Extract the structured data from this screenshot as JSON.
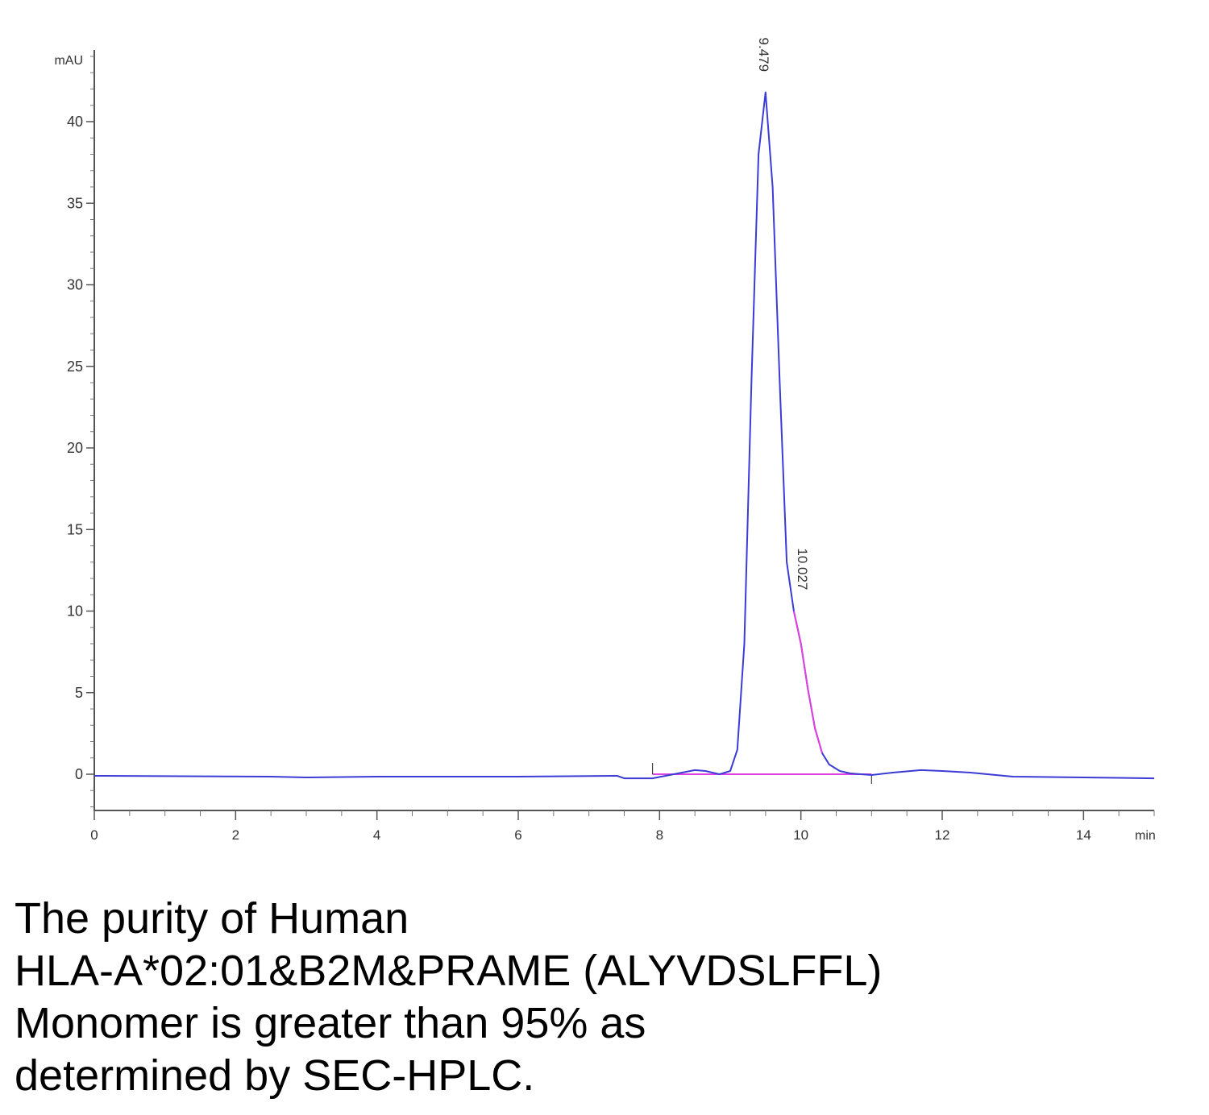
{
  "chart_data": {
    "type": "line",
    "ylabel": "mAU",
    "xlabel": "min",
    "xlim": [
      0,
      15
    ],
    "ylim": [
      -2.2,
      44
    ],
    "x_ticks": [
      0,
      2,
      4,
      6,
      8,
      10,
      12,
      14
    ],
    "y_ticks": [
      0,
      5,
      10,
      15,
      20,
      25,
      30,
      35,
      40
    ],
    "grid": false,
    "series": [
      {
        "color": "#3b3bd6",
        "x": [
          0,
          2.5,
          3.0,
          4.0,
          5.0,
          6.0,
          7.4,
          7.5,
          7.9,
          8.2,
          8.5,
          8.65,
          8.85,
          9.0,
          9.1,
          9.2,
          9.3,
          9.4,
          9.5,
          9.6,
          9.7,
          9.8,
          9.9,
          10.0,
          10.1,
          10.2,
          10.3,
          10.4,
          10.55,
          10.7,
          11.0,
          11.3,
          11.7,
          12.0,
          12.4,
          13.0,
          14.0,
          15.0
        ],
        "y": [
          -0.1,
          -0.15,
          -0.2,
          -0.15,
          -0.15,
          -0.15,
          -0.1,
          -0.25,
          -0.25,
          0.0,
          0.25,
          0.2,
          0.0,
          0.2,
          1.5,
          8.0,
          24.0,
          38.0,
          41.8,
          36.0,
          24.0,
          13.0,
          10.0,
          8.0,
          5.2,
          2.8,
          1.3,
          0.6,
          0.2,
          0.05,
          -0.05,
          0.1,
          0.25,
          0.2,
          0.1,
          -0.15,
          -0.2,
          -0.25
        ]
      }
    ],
    "baseline": {
      "color": "#e040e0",
      "x": [
        7.9,
        11.0
      ],
      "y": [
        0.0,
        0.0
      ]
    },
    "peak_integration": {
      "color": "#e040e0",
      "x": [
        9.9,
        10.0,
        10.1,
        10.2,
        10.3
      ],
      "y": [
        10.0,
        8.0,
        5.2,
        2.8,
        1.3
      ]
    },
    "annotations": [
      {
        "text": "9.479",
        "x": 9.479,
        "y": 41.8
      },
      {
        "text": "10.027",
        "x": 10.027,
        "y": 10.5
      }
    ]
  },
  "caption": [
    "The purity of Human",
    "HLA-A*02:01&B2M&PRAME (ALYVDSLFFL)",
    "Monomer is greater than 95% as",
    "determined by SEC-HPLC."
  ]
}
